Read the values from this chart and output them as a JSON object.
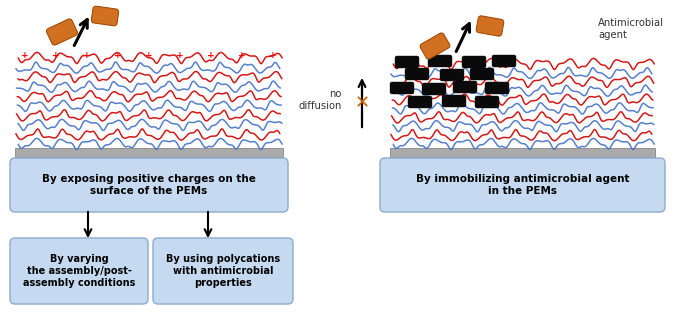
{
  "bg_color": "#ffffff",
  "box_color": "#c5d9f1",
  "box_edge_color": "#8eaacc",
  "box1_text": "By exposing positive charges on the\nsurface of the PEMs",
  "box2a_text": "By varying\nthe assembly/post-\nassembly conditions",
  "box2b_text": "By using polycations\nwith antimicrobial\nproperties",
  "box3_text": "By immobilizing antimicrobial agent\nin the PEMs",
  "antimicrobial_label": "Antimicrobial\nagent",
  "no_diffusion_label": "no\ndiffusion",
  "polymer_red": "#cc0000",
  "polymer_blue": "#4472c4",
  "bacteria_orange": "#d07020",
  "substrate_color": "#aaaaaa",
  "text_color": "#000000",
  "label_color": "#555555"
}
